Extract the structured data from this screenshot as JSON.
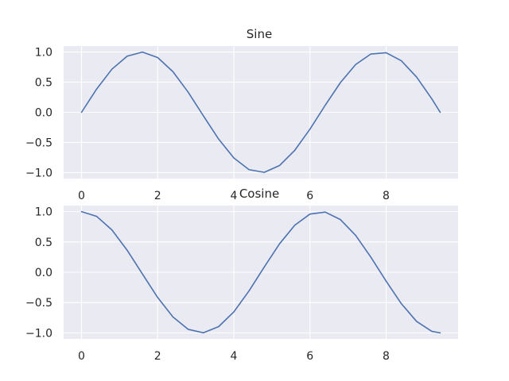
{
  "chart_data": [
    {
      "type": "line",
      "title": "Sine",
      "xlabel": "",
      "ylabel": "",
      "xlim": [
        -0.47,
        9.89
      ],
      "ylim": [
        -1.1,
        1.1
      ],
      "xticks": [
        0,
        2,
        4,
        6,
        8
      ],
      "xtick_labels": [
        "0",
        "2",
        "4",
        "6",
        "8"
      ],
      "yticks": [
        1.0,
        0.5,
        0.0,
        -0.5,
        -1.0
      ],
      "ytick_labels": [
        "1.0",
        "0.5",
        "0.0",
        "−0.5",
        "−1.0"
      ],
      "grid": true,
      "background": "#eaeaf2",
      "series": [
        {
          "color": "#4c72b0",
          "x": [
            0,
            0.4,
            0.8,
            1.2,
            1.6,
            2.0,
            2.4,
            2.8,
            3.2,
            3.6,
            4.0,
            4.4,
            4.8,
            5.2,
            5.6,
            6.0,
            6.4,
            6.8,
            7.2,
            7.6,
            8.0,
            8.4,
            8.8,
            9.2,
            9.42
          ],
          "y": [
            0.0,
            0.389,
            0.717,
            0.932,
            1.0,
            0.909,
            0.675,
            0.335,
            -0.058,
            -0.443,
            -0.757,
            -0.952,
            -0.996,
            -0.883,
            -0.631,
            -0.279,
            0.117,
            0.494,
            0.794,
            0.968,
            0.989,
            0.855,
            0.585,
            0.223,
            0.0
          ]
        }
      ]
    },
    {
      "type": "line",
      "title": "Cosine",
      "xlabel": "",
      "ylabel": "",
      "xlim": [
        -0.47,
        9.89
      ],
      "ylim": [
        -1.1,
        1.1
      ],
      "xticks": [
        0,
        2,
        4,
        6,
        8
      ],
      "xtick_labels": [
        "0",
        "2",
        "4",
        "6",
        "8"
      ],
      "yticks": [
        1.0,
        0.5,
        0.0,
        -0.5,
        -1.0
      ],
      "ytick_labels": [
        "1.0",
        "0.5",
        "0.0",
        "−0.5",
        "−1.0"
      ],
      "grid": true,
      "background": "#eaeaf2",
      "series": [
        {
          "color": "#4c72b0",
          "x": [
            0,
            0.4,
            0.8,
            1.2,
            1.6,
            2.0,
            2.4,
            2.8,
            3.2,
            3.6,
            4.0,
            4.4,
            4.8,
            5.2,
            5.6,
            6.0,
            6.4,
            6.8,
            7.2,
            7.6,
            8.0,
            8.4,
            8.8,
            9.2,
            9.42
          ],
          "y": [
            1.0,
            0.921,
            0.697,
            0.362,
            -0.029,
            -0.416,
            -0.737,
            -0.942,
            -0.998,
            -0.897,
            -0.654,
            -0.307,
            0.087,
            0.469,
            0.776,
            0.96,
            0.993,
            0.869,
            0.608,
            0.248,
            -0.146,
            -0.519,
            -0.811,
            -0.975,
            -1.0
          ]
        }
      ]
    }
  ]
}
